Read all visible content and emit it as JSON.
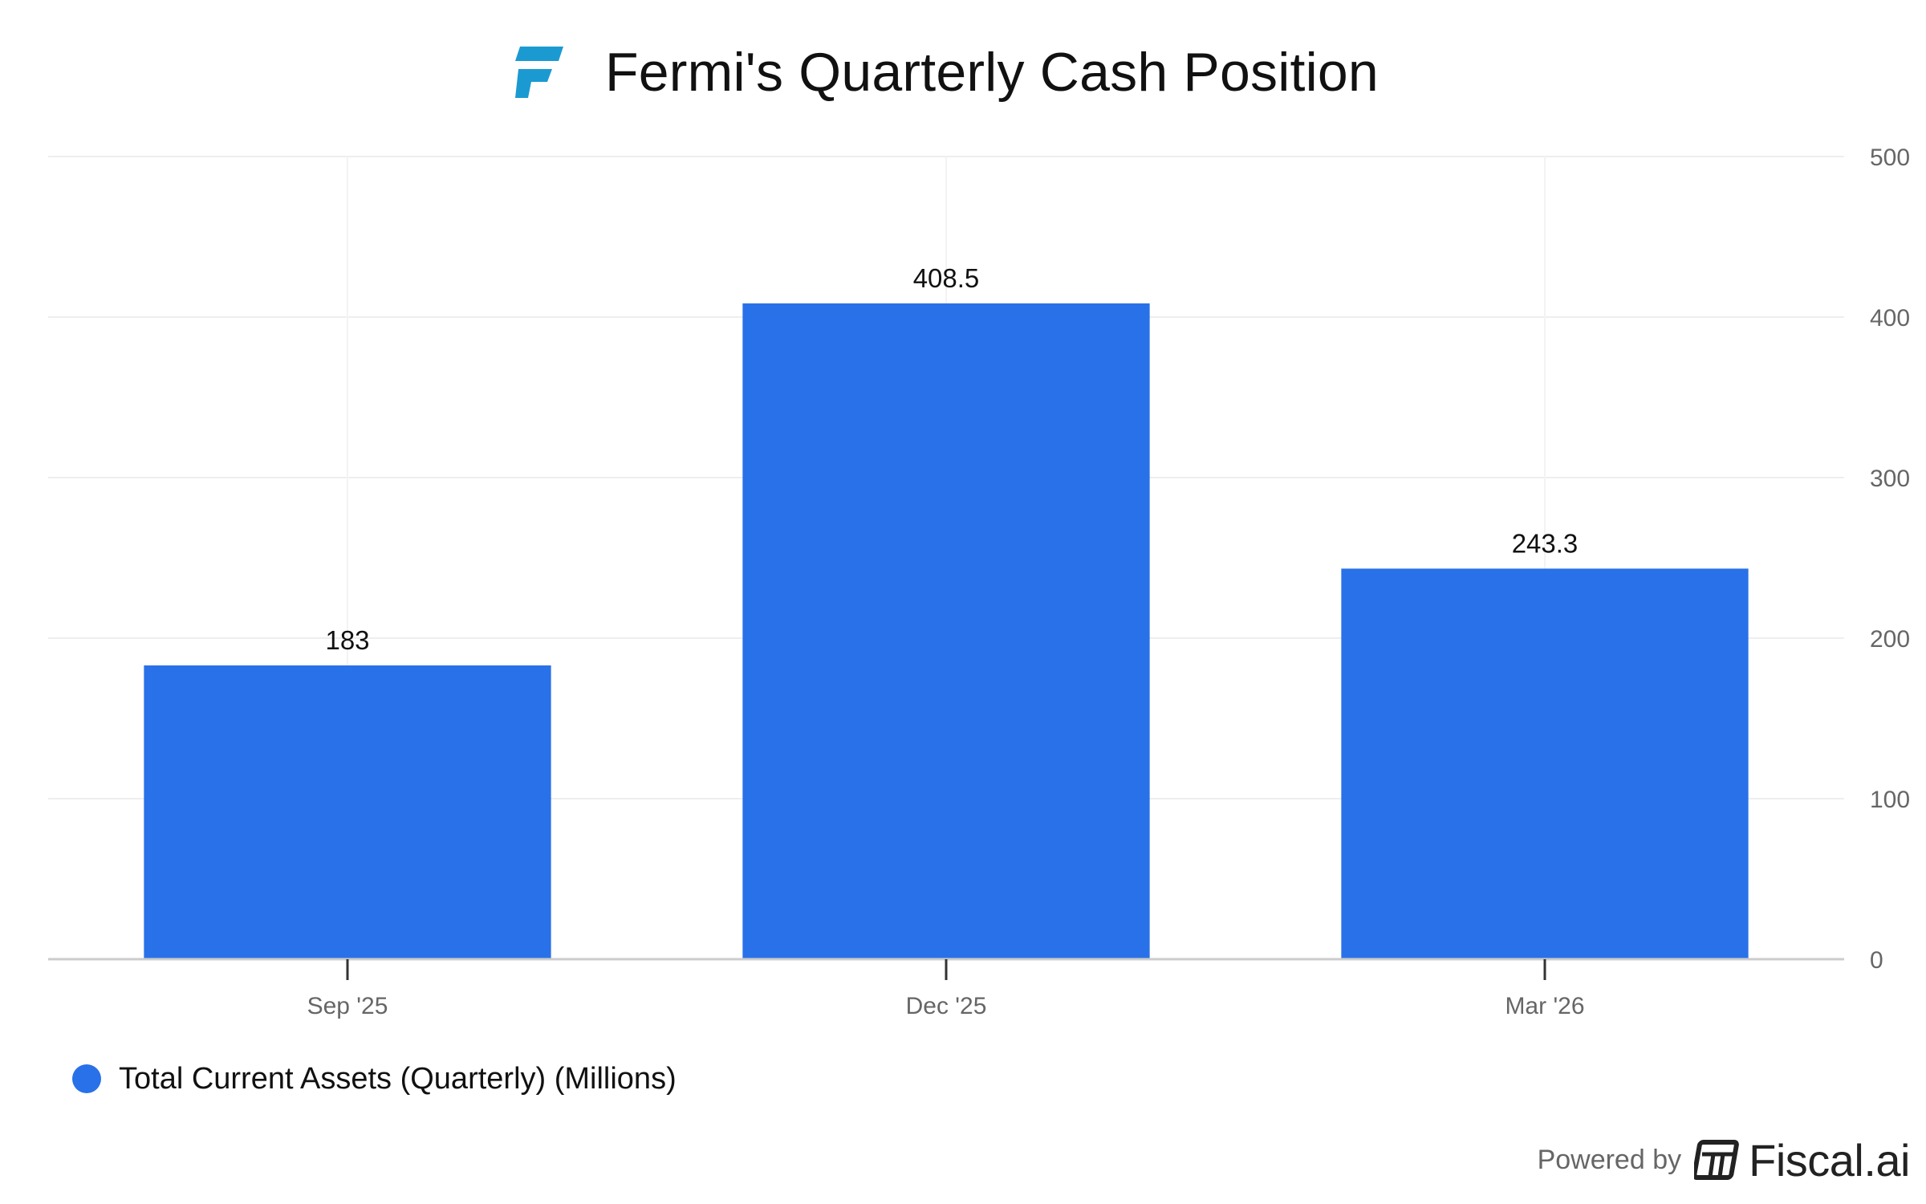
{
  "header": {
    "title": "Fermi's Quarterly Cash Position",
    "logo_icon": "fermi-logo-icon"
  },
  "colors": {
    "bar": "#2971E8",
    "logo": "#1B9AD2",
    "grid": "#EEEEEE",
    "axis": "#CCCCCC"
  },
  "chart_data": {
    "type": "bar",
    "title": "Fermi's Quarterly Cash Position",
    "categories": [
      "Sep '25",
      "Dec '25",
      "Mar '26"
    ],
    "series": [
      {
        "name": "Total Current Assets (Quarterly) (Millions)",
        "values": [
          183,
          408.5,
          243.3
        ],
        "labels": [
          "183",
          "408.5",
          "243.3"
        ]
      }
    ],
    "ylim": [
      0,
      500
    ],
    "yticks": [
      0,
      100,
      200,
      300,
      400,
      500
    ],
    "y_axis_side": "right",
    "grid": true,
    "legend": "bottom-left",
    "xlabel": "",
    "ylabel": ""
  },
  "legend": {
    "label": "Total Current Assets (Quarterly) (Millions)"
  },
  "footer": {
    "powered_by": "Powered by",
    "brand": "Fiscal.ai",
    "brand_icon": "fiscal-ai-logo-icon"
  }
}
